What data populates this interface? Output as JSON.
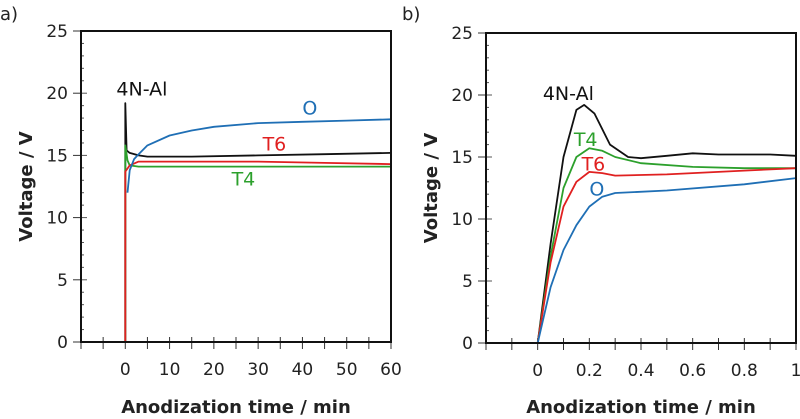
{
  "chart_data": [
    {
      "type": "line",
      "panel_label": "a)",
      "xlabel": "Anodization time / min",
      "ylabel": "Voltage / V",
      "xlim": [
        -10,
        60
      ],
      "ylim": [
        0,
        25
      ],
      "xticks": [
        0,
        10,
        20,
        30,
        40,
        50,
        60
      ],
      "yticks": [
        0,
        5,
        10,
        15,
        20,
        25
      ],
      "grid": false,
      "series": [
        {
          "name": "4N-Al",
          "color": "#111111",
          "x": [
            0,
            0,
            0.3,
            1,
            3,
            5,
            15,
            30,
            45,
            60
          ],
          "y": [
            0,
            19.2,
            15.4,
            15.2,
            15.0,
            14.9,
            14.9,
            15.0,
            15.1,
            15.2
          ]
        },
        {
          "name": "T4",
          "color": "#2ca02c",
          "x": [
            0,
            0,
            0.5,
            1,
            3,
            10,
            30,
            60
          ],
          "y": [
            0,
            15.8,
            14.6,
            14.2,
            14.1,
            14.1,
            14.1,
            14.1
          ]
        },
        {
          "name": "T6",
          "color": "#e02020",
          "x": [
            0,
            0,
            1,
            3,
            10,
            30,
            45,
            60
          ],
          "y": [
            0,
            13.7,
            14.2,
            14.5,
            14.5,
            14.5,
            14.4,
            14.3
          ]
        },
        {
          "name": "O",
          "color": "#1f6fb5",
          "x": [
            0.5,
            1,
            2,
            3,
            5,
            10,
            15,
            20,
            30,
            40,
            50,
            60
          ],
          "y": [
            12.0,
            13.8,
            14.7,
            15.1,
            15.8,
            16.6,
            17.0,
            17.3,
            17.6,
            17.7,
            17.8,
            17.9
          ]
        }
      ],
      "annotations": [
        {
          "text": "4N-Al",
          "color": "#111111",
          "x": -2,
          "y": 19.8
        },
        {
          "text": "O",
          "color": "#1f6fb5",
          "x": 40,
          "y": 18.3
        },
        {
          "text": "T6",
          "color": "#e02020",
          "x": 31,
          "y": 15.4
        },
        {
          "text": "T4",
          "color": "#2ca02c",
          "x": 24,
          "y": 12.6
        }
      ]
    },
    {
      "type": "line",
      "panel_label": "b)",
      "xlabel": "Anodization time / min",
      "ylabel": "Voltage / V",
      "xlim": [
        -0.2,
        1
      ],
      "ylim": [
        0,
        25
      ],
      "xticks": [
        0,
        0.2,
        0.4,
        0.6,
        0.8,
        1
      ],
      "yticks": [
        0,
        5,
        10,
        15,
        20,
        25
      ],
      "grid": false,
      "series": [
        {
          "name": "4N-Al",
          "color": "#111111",
          "x": [
            0,
            0.05,
            0.1,
            0.15,
            0.18,
            0.22,
            0.28,
            0.35,
            0.4,
            0.5,
            0.6,
            0.7,
            0.9,
            1
          ],
          "y": [
            0,
            8,
            15,
            18.8,
            19.2,
            18.5,
            16,
            15,
            14.9,
            15.1,
            15.3,
            15.2,
            15.2,
            15.1
          ]
        },
        {
          "name": "T4",
          "color": "#2ca02c",
          "x": [
            0,
            0.05,
            0.1,
            0.15,
            0.2,
            0.25,
            0.3,
            0.4,
            0.6,
            0.8,
            1
          ],
          "y": [
            0,
            7,
            12.5,
            15,
            15.7,
            15.5,
            15,
            14.5,
            14.2,
            14.1,
            14.1
          ]
        },
        {
          "name": "T6",
          "color": "#e02020",
          "x": [
            0,
            0.05,
            0.1,
            0.15,
            0.2,
            0.25,
            0.3,
            0.5,
            0.8,
            1
          ],
          "y": [
            0,
            6.5,
            11,
            13,
            13.8,
            13.7,
            13.5,
            13.6,
            13.9,
            14.1
          ]
        },
        {
          "name": "O",
          "color": "#1f6fb5",
          "x": [
            0,
            0.05,
            0.1,
            0.15,
            0.2,
            0.25,
            0.3,
            0.5,
            0.8,
            1
          ],
          "y": [
            0,
            4.5,
            7.5,
            9.5,
            11,
            11.8,
            12.1,
            12.3,
            12.8,
            13.3
          ]
        }
      ],
      "annotations": [
        {
          "text": "4N-Al",
          "color": "#111111",
          "x": 0.02,
          "y": 19.6
        },
        {
          "text": "T4",
          "color": "#2ca02c",
          "x": 0.14,
          "y": 15.9
        },
        {
          "text": "T6",
          "color": "#e02020",
          "x": 0.17,
          "y": 13.9
        },
        {
          "text": "O",
          "color": "#1f6fb5",
          "x": 0.2,
          "y": 11.9
        }
      ]
    }
  ]
}
